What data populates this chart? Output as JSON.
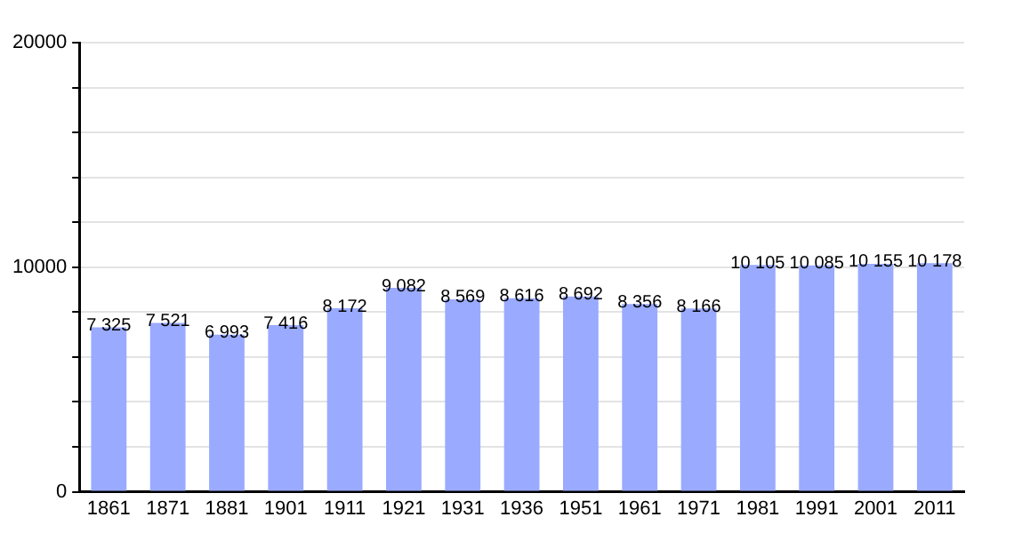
{
  "chart_data": {
    "type": "bar",
    "categories": [
      "1861",
      "1871",
      "1881",
      "1901",
      "1911",
      "1921",
      "1931",
      "1936",
      "1951",
      "1961",
      "1971",
      "1981",
      "1991",
      "2001",
      "2011"
    ],
    "values": [
      7325,
      7521,
      6993,
      7416,
      8172,
      9082,
      8569,
      8616,
      8692,
      8356,
      8166,
      10105,
      10085,
      10155,
      10178
    ],
    "value_labels": [
      "7 325",
      "7 521",
      "6 993",
      "7 416",
      "8 172",
      "9 082",
      "8 569",
      "8 616",
      "8 692",
      "8 356",
      "8 166",
      "10 105",
      "10 085",
      "10 155",
      "10 178"
    ],
    "color": "#99aaff",
    "ylim": [
      0,
      20000
    ],
    "yticks": [
      0,
      {
        "value": 2000,
        "label": null
      },
      {
        "value": 4000,
        "label": null
      },
      {
        "value": 6000,
        "label": null
      },
      {
        "value": 8000,
        "label": null
      },
      10000,
      {
        "value": 12000,
        "label": null
      },
      {
        "value": 14000,
        "label": null
      },
      {
        "value": 16000,
        "label": null
      },
      {
        "value": 18000,
        "label": null
      },
      20000
    ],
    "grid": "y",
    "legend": false
  }
}
